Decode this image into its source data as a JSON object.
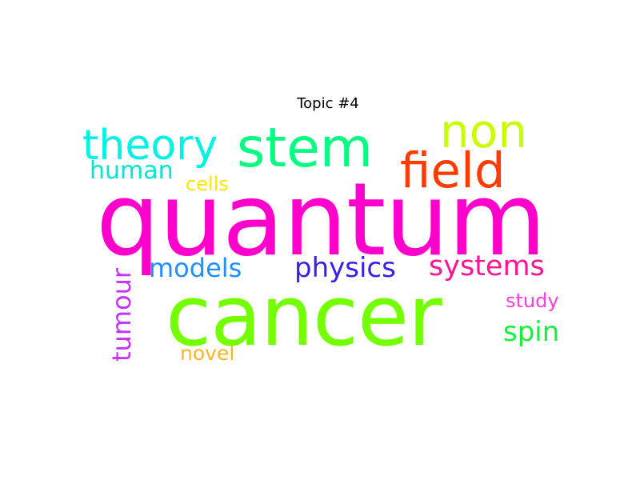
{
  "title": "Topic #4",
  "words": {
    "quantum": {
      "text": "quantum",
      "color": "#ff00cc"
    },
    "cancer": {
      "text": "cancer",
      "color": "#73ff00"
    },
    "stem": {
      "text": "stem",
      "color": "#00ff80"
    },
    "theory": {
      "text": "theory",
      "color": "#00f2e6"
    },
    "non": {
      "text": "non",
      "color": "#c8ff00"
    },
    "field": {
      "text": "field",
      "color": "#ff3c00"
    },
    "human": {
      "text": "human",
      "color": "#00e6d2"
    },
    "cells": {
      "text": "cells",
      "color": "#ffe600"
    },
    "models": {
      "text": "models",
      "color": "#1e90ff"
    },
    "physics": {
      "text": "physics",
      "color": "#3c1ee6"
    },
    "systems": {
      "text": "systems",
      "color": "#ff1493"
    },
    "study": {
      "text": "study",
      "color": "#ff3cdc"
    },
    "spin": {
      "text": "spin",
      "color": "#14f03c"
    },
    "novel": {
      "text": "novel",
      "color": "#ffb428"
    },
    "tumour": {
      "text": "tumour",
      "color": "#c832ff"
    }
  }
}
